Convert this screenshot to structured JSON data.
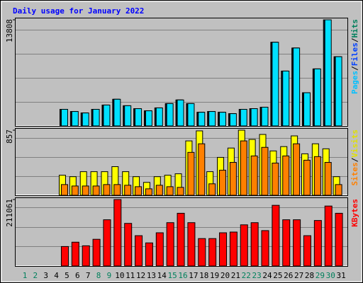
{
  "chart_data": [
    {
      "type": "bar",
      "title": "Daily usage for January 2022",
      "separator": "/",
      "categories": [
        "1",
        "2",
        "3",
        "4",
        "5",
        "6",
        "7",
        "8",
        "9",
        "10",
        "11",
        "12",
        "13",
        "14",
        "15",
        "16",
        "17",
        "18",
        "19",
        "20",
        "21",
        "22",
        "23",
        "24",
        "25",
        "26",
        "27",
        "28",
        "29",
        "30",
        "31"
      ],
      "category_colors": [
        "#00805C",
        "#00805C",
        "#000000",
        "#000000",
        "#000000",
        "#000000",
        "#000000",
        "#00805C",
        "#00805C",
        "#000000",
        "#000000",
        "#000000",
        "#000000",
        "#000000",
        "#00805C",
        "#00805C",
        "#000000",
        "#000000",
        "#000000",
        "#000000",
        "#000000",
        "#00805C",
        "#00805C",
        "#000000",
        "#000000",
        "#000000",
        "#000000",
        "#000000",
        "#00805C",
        "#00805C",
        "#000000"
      ],
      "ylim": [
        0,
        13808
      ],
      "yticks": [
        13808
      ],
      "series": [
        {
          "name": "Hits",
          "color": "#00805C",
          "values": [
            null,
            null,
            null,
            null,
            2160,
            1880,
            1690,
            2160,
            2720,
            3470,
            2630,
            2250,
            1970,
            2350,
            2910,
            3380,
            2910,
            1780,
            1880,
            1780,
            1600,
            2160,
            2250,
            2440,
            10890,
            7140,
            10140,
            4320,
            7420,
            13808,
            9010
          ]
        },
        {
          "name": "Files",
          "color": "#0040FF",
          "values": [
            null,
            null,
            null,
            null,
            2160,
            1880,
            1690,
            2160,
            2720,
            3470,
            2630,
            2250,
            1970,
            2350,
            2910,
            3380,
            2910,
            1780,
            1880,
            1780,
            1600,
            2160,
            2250,
            2440,
            10890,
            7140,
            10140,
            4320,
            7420,
            13808,
            9010
          ]
        },
        {
          "name": "Pages",
          "color": "#00E0FF",
          "values": [
            null,
            null,
            null,
            null,
            2160,
            1880,
            1690,
            2160,
            2720,
            3470,
            2630,
            2250,
            1970,
            2350,
            2910,
            3380,
            2910,
            1780,
            1880,
            1780,
            1600,
            2160,
            2250,
            2440,
            10890,
            7140,
            10140,
            4320,
            7420,
            13808,
            9010
          ]
        }
      ]
    },
    {
      "type": "bar",
      "ylim": [
        0,
        857
      ],
      "yticks": [
        857
      ],
      "series": [
        {
          "name": "Visits",
          "color": "#FFFF00",
          "values": [
            null,
            null,
            null,
            null,
            264,
            245,
            311,
            311,
            311,
            377,
            311,
            245,
            170,
            245,
            264,
            283,
            716,
            848,
            311,
            499,
            622,
            857,
            735,
            801,
            584,
            641,
            782,
            546,
            678,
            612,
            245
          ]
        },
        {
          "name": "Sites",
          "color": "#FF8000",
          "values": [
            null,
            null,
            null,
            null,
            141,
            122,
            122,
            122,
            141,
            141,
            132,
            113,
            85,
            132,
            113,
            104,
            565,
            678,
            151,
            330,
            433,
            716,
            518,
            631,
            424,
            518,
            678,
            462,
            509,
            433,
            141
          ]
        }
      ]
    },
    {
      "type": "bar",
      "ylim": [
        0,
        211061
      ],
      "yticks": [
        211061
      ],
      "series": [
        {
          "name": "KBytes",
          "color": "#FF0000",
          "values": [
            null,
            null,
            null,
            null,
            61940,
            75700,
            64230,
            84880,
            146820,
            211061,
            135350,
            96350,
            73410,
            105520,
            137640,
            167460,
            137640,
            87170,
            87170,
            105520,
            107820,
            130760,
            137640,
            112410,
            192700,
            146820,
            146820,
            96350,
            144520,
            190400,
            167460
          ]
        }
      ]
    }
  ]
}
